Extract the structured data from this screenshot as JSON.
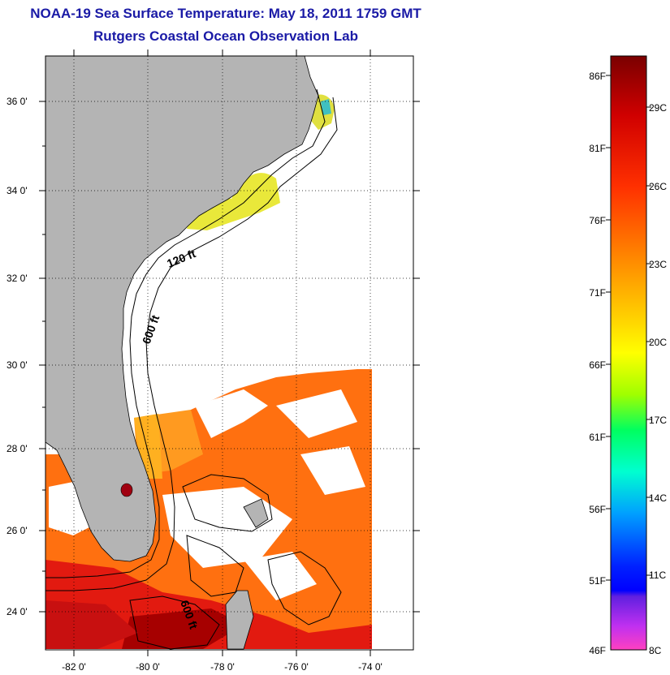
{
  "title": "NOAA-19 Sea Surface Temperature:  May 18, 2011 1759 GMT",
  "subtitle": "Rutgers Coastal Ocean Observation Lab",
  "map": {
    "lat_labels": [
      "36 0'",
      "34 0'",
      "32 0'",
      "30 0'",
      "28 0'",
      "26 0'",
      "24 0'"
    ],
    "lon_labels": [
      "-82 0'",
      "-80 0'",
      "-78 0'",
      "-76 0'",
      "-74 0'"
    ],
    "contour_labels": [
      "120 ft",
      "600 ft",
      "600 ft"
    ],
    "land_color": "#b4b4b4",
    "grid": "dotted"
  },
  "colorbar": {
    "fahrenheit_labels": [
      "86F",
      "81F",
      "76F",
      "71F",
      "66F",
      "61F",
      "56F",
      "51F",
      "46F"
    ],
    "celsius_labels": [
      "29C",
      "26C",
      "23C",
      "20C",
      "17C",
      "14C",
      "11C",
      "8C"
    ],
    "gradient_colors": [
      "#7a0000",
      "#d00000",
      "#ff3000",
      "#ff7000",
      "#ffb000",
      "#ffff00",
      "#a0ff00",
      "#00ff60",
      "#00ffd0",
      "#00a0ff",
      "#0030ff",
      "#0000ff",
      "#6020ff",
      "#c020ff",
      "#ff40c0"
    ]
  }
}
